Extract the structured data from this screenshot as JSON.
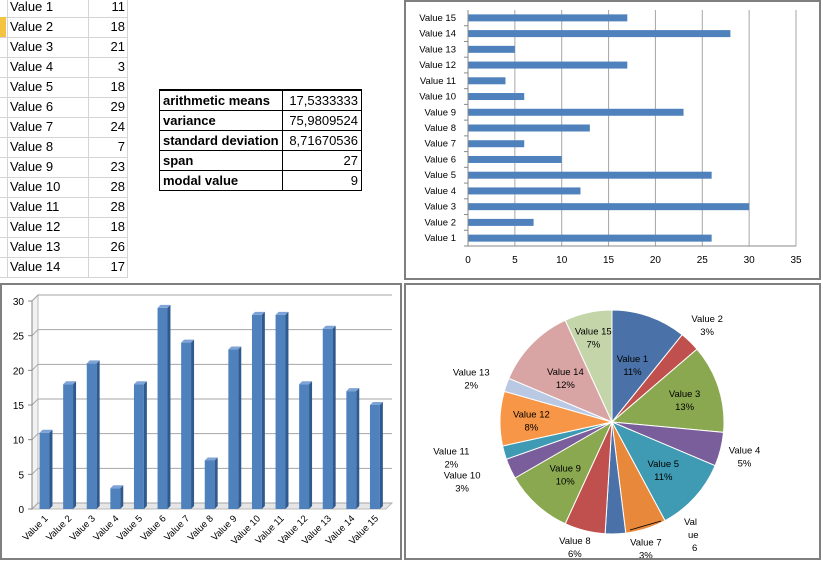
{
  "sheet": {
    "rows": [
      {
        "label": "Value 1",
        "value": "11"
      },
      {
        "label": "Value 2",
        "value": "18"
      },
      {
        "label": "Value 3",
        "value": "21"
      },
      {
        "label": "Value 4",
        "value": "3"
      },
      {
        "label": "Value 5",
        "value": "18"
      },
      {
        "label": "Value 6",
        "value": "29"
      },
      {
        "label": "Value 7",
        "value": "24"
      },
      {
        "label": "Value 8",
        "value": "7"
      },
      {
        "label": "Value 9",
        "value": "23"
      },
      {
        "label": "Value 10",
        "value": "28"
      },
      {
        "label": "Value 11",
        "value": "28"
      },
      {
        "label": "Value 12",
        "value": "18"
      },
      {
        "label": "Value 13",
        "value": "26"
      },
      {
        "label": "Value 14",
        "value": "17"
      }
    ]
  },
  "stats": {
    "rows": [
      {
        "label": "arithmetic means",
        "value": "17,5333333"
      },
      {
        "label": "variance",
        "value": "75,9809524"
      },
      {
        "label": "standard deviation",
        "value": "8,71670536"
      },
      {
        "label": "span",
        "value": "27"
      },
      {
        "label": "modal value",
        "value": "9"
      }
    ]
  },
  "colors": {
    "bar": "#4f81bd",
    "grid": "#a6a6a6",
    "pie": [
      "#4a72a8",
      "#c0504d",
      "#8aa84f",
      "#7a5e9b",
      "#3e9bb3",
      "#e8883a",
      "#4a72a8",
      "#c0504d",
      "#8aa84f",
      "#7a5e9b",
      "#3e9bb3",
      "#f79646",
      "#b9c8e3",
      "#d9a5a4",
      "#c4d6a9"
    ]
  },
  "chart_data": [
    {
      "type": "bar",
      "orientation": "horizontal",
      "categories": [
        "Value 1",
        "Value 2",
        "Value 3",
        "Value 4",
        "Value 5",
        "Value 6",
        "Value 7",
        "Value 8",
        "Value 9",
        "Value 10",
        "Value 11",
        "Value 12",
        "Value 13",
        "Value 14",
        "Value 15"
      ],
      "values": [
        26,
        7,
        30,
        12,
        26,
        10,
        6,
        13,
        23,
        6,
        4,
        17,
        5,
        28,
        17
      ],
      "xlim": [
        0,
        35
      ],
      "xticks": [
        "0",
        "5",
        "10",
        "15",
        "20",
        "25",
        "30",
        "35"
      ],
      "grid": true
    },
    {
      "type": "bar",
      "orientation": "vertical",
      "categories": [
        "Value 1",
        "Value 2",
        "Value 3",
        "Value 4",
        "Value 5",
        "Value 6",
        "Value 7",
        "Value 8",
        "Value 9",
        "Value 10",
        "Value 11",
        "Value 12",
        "Value 13",
        "Value 14",
        "Value 15"
      ],
      "values": [
        11,
        18,
        21,
        3,
        18,
        29,
        24,
        7,
        23,
        28,
        28,
        18,
        26,
        17,
        15
      ],
      "ylim": [
        0,
        30
      ],
      "yticks": [
        "0",
        "5",
        "10",
        "15",
        "20",
        "25",
        "30"
      ],
      "grid": true
    },
    {
      "type": "pie",
      "labels": [
        "Value 1",
        "Value 2",
        "Value 3",
        "Value 4",
        "Value 5",
        "Value 7",
        "Value 8",
        "Value 9",
        "Value 10",
        "Value 11",
        "Value 12",
        "Value 13",
        "Value 14",
        "Value 15"
      ],
      "slices": [
        {
          "name": "Value 1",
          "value": 11,
          "pct": "11%"
        },
        {
          "name": "Value 2",
          "value": 3,
          "pct": "3%"
        },
        {
          "name": "Value 3",
          "value": 13,
          "pct": "13%"
        },
        {
          "name": "Value 4",
          "value": 5,
          "pct": "5%"
        },
        {
          "name": "Value 5",
          "value": 11,
          "pct": "11%"
        },
        {
          "name": "Value 6",
          "value": 6,
          "pct": "6"
        },
        {
          "name": "Value 7",
          "value": 3,
          "pct": "3%"
        },
        {
          "name": "Value 8",
          "value": 6,
          "pct": "6%"
        },
        {
          "name": "Value 9",
          "value": 10,
          "pct": "10%"
        },
        {
          "name": "Value 10",
          "value": 3,
          "pct": "3%"
        },
        {
          "name": "Value 11",
          "value": 2,
          "pct": "2%"
        },
        {
          "name": "Value 12",
          "value": 8,
          "pct": "8%"
        },
        {
          "name": "Value 13",
          "value": 2,
          "pct": "2%"
        },
        {
          "name": "Value 14",
          "value": 12,
          "pct": "12%"
        },
        {
          "name": "Value 15",
          "value": 7,
          "pct": "7%"
        }
      ],
      "partial_label": [
        "Val",
        "ue"
      ]
    }
  ]
}
